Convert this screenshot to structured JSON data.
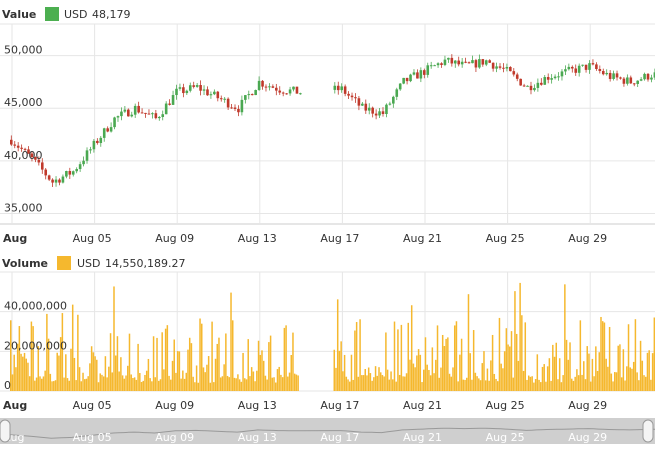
{
  "chart_data": [
    {
      "type": "candlestick",
      "name": "Value",
      "currency": "USD",
      "current_value": "48,179",
      "color": "#4caf50",
      "up_color": "#4aa851",
      "down_color": "#c0392b",
      "x_ticks": [
        "Aug",
        "Aug 05",
        "Aug 09",
        "Aug 13",
        "Aug 17",
        "Aug 21",
        "Aug 25",
        "Aug 29"
      ],
      "y_ticks": [
        "35,000",
        "40,000",
        "45,000",
        "50,000"
      ],
      "ylim": [
        34000,
        53000
      ],
      "gap_days": [
        14.1,
        15.6
      ],
      "series": [
        {
          "name": "Value",
          "x_days": [
            0,
            1,
            2,
            3,
            4,
            5,
            6,
            7,
            8,
            9,
            10,
            11,
            12,
            13,
            14,
            15,
            16,
            17,
            18,
            19,
            20,
            21,
            22,
            23,
            24,
            25,
            26,
            27,
            28,
            29,
            30,
            31
          ],
          "values": [
            42000,
            40200,
            38000,
            39000,
            41500,
            44000,
            45000,
            44000,
            46500,
            47000,
            46000,
            45000,
            47500,
            46800,
            46500,
            null,
            46800,
            45000,
            44500,
            47500,
            48500,
            49500,
            49000,
            49500,
            48500,
            47000,
            48000,
            48500,
            49000,
            48000,
            47500,
            48179
          ]
        }
      ]
    },
    {
      "type": "bar",
      "name": "Volume",
      "currency": "USD",
      "current_value": "14,550,189.27",
      "color": "#f5b82e",
      "y_ticks": [
        "0",
        "20,000,000",
        "40,000,000"
      ],
      "ylim": [
        0,
        60000000
      ],
      "peak_volume": 55000000
    }
  ],
  "navigator": {
    "color": "#999999",
    "labels": [
      "Aug",
      "Aug 05",
      "Aug 09",
      "Aug 13",
      "Aug 17",
      "Aug 21",
      "Aug 25",
      "Aug 29"
    ]
  }
}
